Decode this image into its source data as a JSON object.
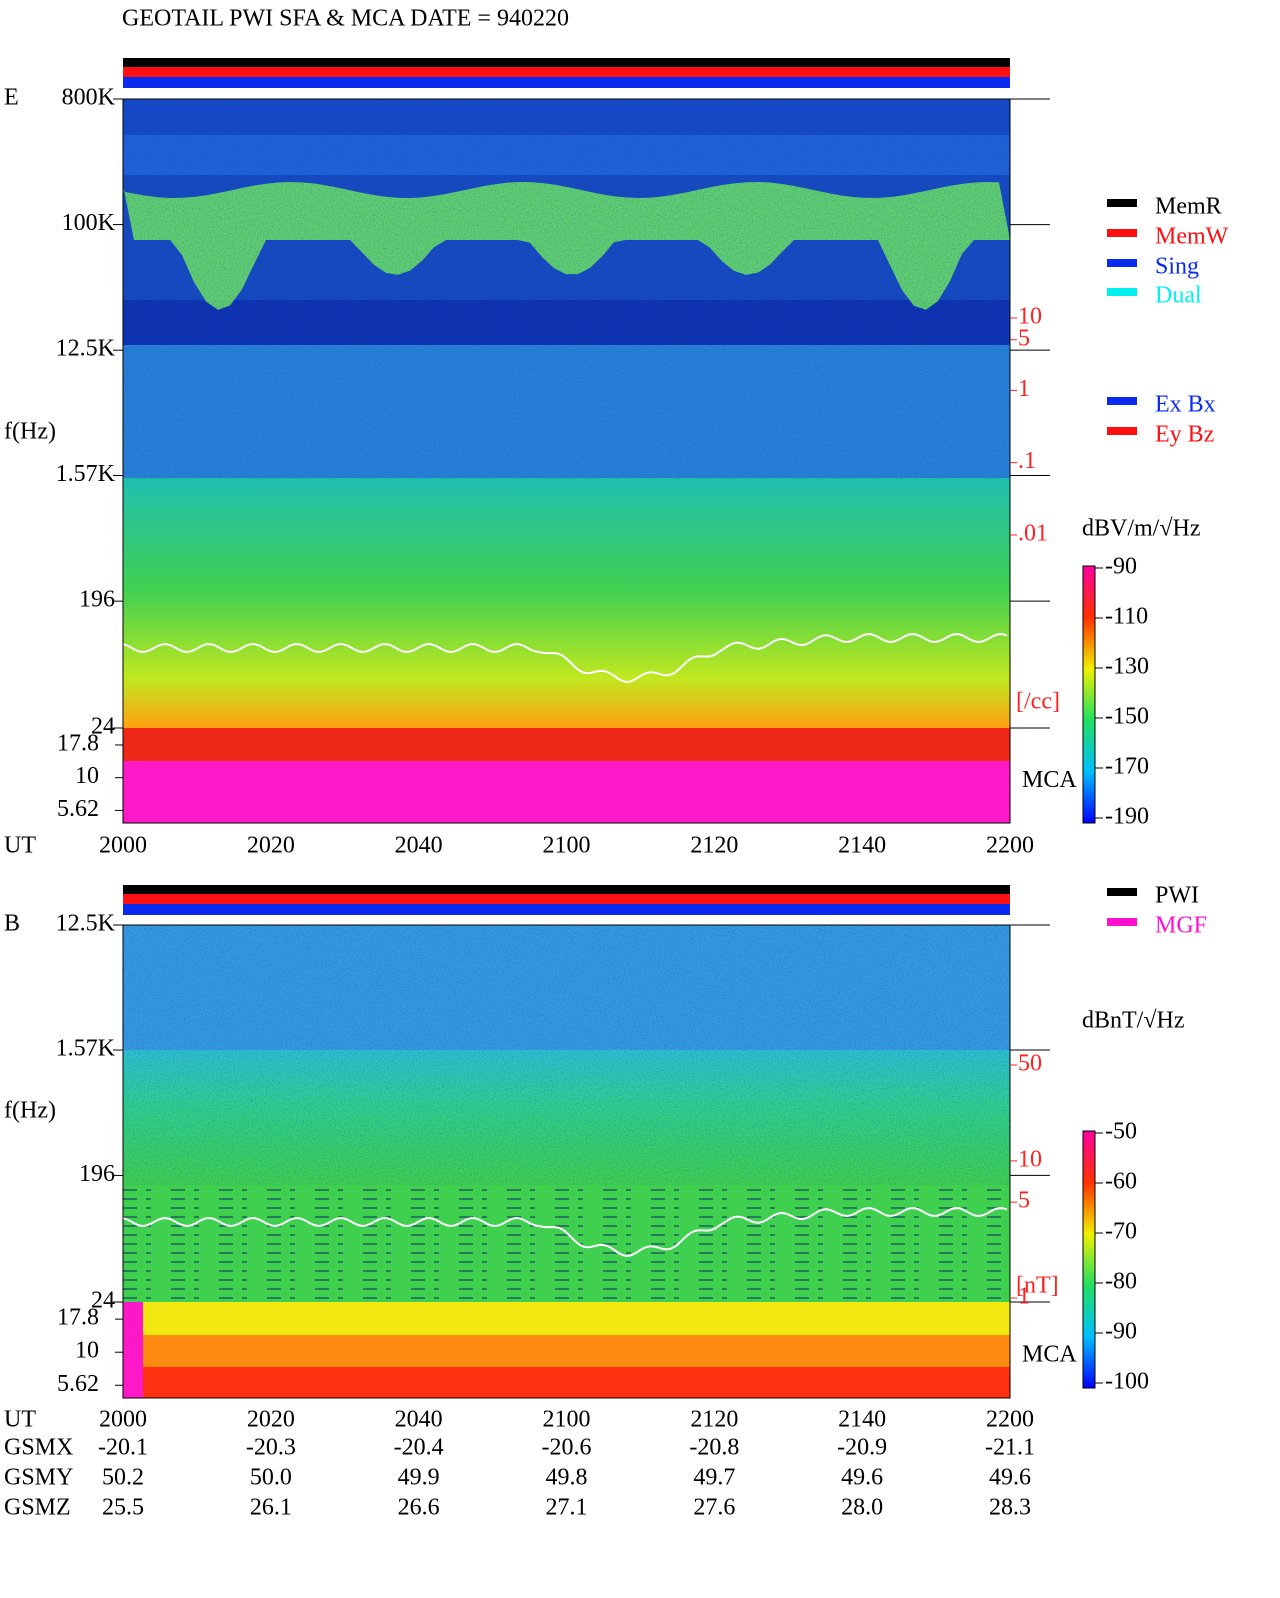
{
  "header": {
    "title": "GEOTAIL  PWI SFA & MCA   DATE = 940220"
  },
  "panels": [
    {
      "label": "E",
      "y_label": "f(Hz)",
      "x_label": "UT",
      "mca_label": "MCA",
      "log_scale": true,
      "ylim": [
        24,
        800000
      ],
      "yticks": [
        {
          "value": 800000,
          "label": "800K"
        },
        {
          "value": 100000,
          "label": "100K"
        },
        {
          "value": 12500,
          "label": "12.5K"
        },
        {
          "value": 1570,
          "label": "1.57K"
        },
        196,
        24
      ],
      "mca_ylim": [
        4.5,
        24
      ],
      "mca_yticks": [
        17.8,
        10,
        5.62
      ],
      "xticks": [
        "2000",
        "2020",
        "2040",
        "2100",
        "2120",
        "2140",
        "2200"
      ],
      "right_scale": {
        "unit": "[/cc]",
        "color": "#ff2020",
        "ylim": [
          0.01,
          10
        ],
        "ticks": [
          10,
          5,
          1,
          {
            "value": 0.1,
            "label": ".1"
          },
          {
            "value": 0.01,
            "label": ".01"
          }
        ]
      },
      "legends": [
        [
          {
            "name": "MemR",
            "color": "#000000"
          },
          {
            "name": "MemW",
            "color": "#ff1010"
          },
          {
            "name": "Sing",
            "color": "#0a2af0"
          },
          {
            "name": "Dual",
            "color": "#00f0f0"
          }
        ],
        [
          {
            "name": "Ex Bx",
            "color": "#0a2af0"
          },
          {
            "name": "Ey Bz",
            "color": "#ff1010"
          }
        ]
      ],
      "colorbar": {
        "unit": "dBV/m/√Hz",
        "clim": [
          -190,
          -90
        ],
        "ticks": [
          -90,
          -110,
          -130,
          -150,
          -170,
          -190
        ]
      }
    },
    {
      "label": "B",
      "y_label": "f(Hz)",
      "x_label": "UT",
      "mca_label": "MCA",
      "log_scale": true,
      "ylim": [
        24,
        12500
      ],
      "yticks": [
        {
          "value": 12500,
          "label": "12.5K"
        },
        {
          "value": 1570,
          "label": "1.57K"
        },
        196,
        24
      ],
      "mca_ylim": [
        4.5,
        24
      ],
      "mca_yticks": [
        17.8,
        10,
        5.62
      ],
      "xticks": [
        "2000",
        "2020",
        "2040",
        "2100",
        "2120",
        "2140",
        "2200"
      ],
      "right_scale": {
        "unit": "[nT]",
        "color": "#ff2020",
        "ylim": [
          1,
          50
        ],
        "ticks": [
          50,
          10,
          5,
          1
        ]
      },
      "legends": [
        [
          {
            "name": "PWI",
            "color": "#000000"
          },
          {
            "name": "MGF",
            "color": "#ff10d0"
          }
        ]
      ],
      "colorbar": {
        "unit": "dBnT/√Hz",
        "clim": [
          -100,
          -50
        ],
        "ticks": [
          -50,
          -60,
          -70,
          -80,
          -90,
          -100
        ]
      }
    }
  ],
  "orbit": {
    "rows": [
      {
        "label": "GSMX",
        "values": [
          "-20.1",
          "-20.3",
          "-20.4",
          "-20.6",
          "-20.8",
          "-20.9",
          "-21.1"
        ]
      },
      {
        "label": "GSMY",
        "values": [
          "50.2",
          "50.0",
          "49.9",
          "49.8",
          "49.7",
          "49.6",
          "49.6"
        ]
      },
      {
        "label": "GSMZ",
        "values": [
          "25.5",
          "26.1",
          "26.6",
          "27.1",
          "27.6",
          "28.0",
          "28.3"
        ]
      }
    ]
  }
}
